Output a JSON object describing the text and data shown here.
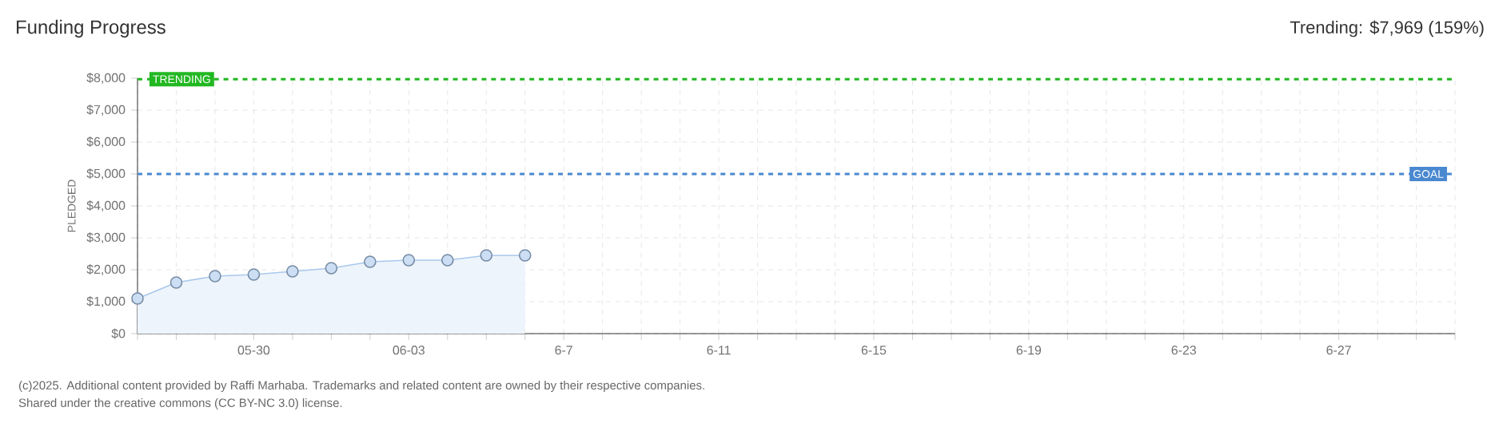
{
  "chart_data": {
    "type": "area",
    "title": "Funding Progress",
    "ylabel": "PLEDGED",
    "annotations": [
      "Trending: $7,969 (159%)",
      "(c)2025. Additional content provided by Raffi Marhaba. Trademarks and related content are owned by their respective companies.",
      "Shared under the creative commons (CC BY-NC 3.0) license."
    ],
    "x": [
      "2025-05-27",
      "2025-05-28",
      "2025-05-29",
      "2025-05-30",
      "2025-05-31",
      "2025-06-01",
      "2025-06-02",
      "2025-06-03",
      "2025-06-04",
      "2025-06-05",
      "2025-06-06"
    ],
    "series": [
      {
        "color": "#a8c8ec",
        "values": [
          1100,
          1600,
          1800,
          1850,
          1950,
          2050,
          2250,
          2300,
          2300,
          2450,
          2450
        ]
      }
    ],
    "marker": "circle",
    "grid": true,
    "xlim": [
      "2025-05-27",
      "2025-06-30"
    ],
    "xticks": [
      {
        "value": "2025-05-27",
        "label": null
      },
      {
        "value": "2025-05-28",
        "label": null
      },
      {
        "value": "2025-05-29",
        "label": null
      },
      {
        "value": "2025-05-30",
        "label": "05-30"
      },
      {
        "value": "2025-05-31",
        "label": null
      },
      {
        "value": "2025-06-01",
        "label": null
      },
      {
        "value": "2025-06-02",
        "label": null
      },
      {
        "value": "2025-06-03",
        "label": "06-03"
      },
      {
        "value": "2025-06-04",
        "label": null
      },
      {
        "value": "2025-06-05",
        "label": null
      },
      {
        "value": "2025-06-06",
        "label": null
      },
      {
        "value": "2025-06-07",
        "label": "6-7"
      },
      {
        "value": "2025-06-08",
        "label": null
      },
      {
        "value": "2025-06-09",
        "label": null
      },
      {
        "value": "2025-06-10",
        "label": null
      },
      {
        "value": "2025-06-11",
        "label": "6-11"
      },
      {
        "value": "2025-06-12",
        "label": null
      },
      {
        "value": "2025-06-13",
        "label": null
      },
      {
        "value": "2025-06-14",
        "label": null
      },
      {
        "value": "2025-06-15",
        "label": "6-15"
      },
      {
        "value": "2025-06-16",
        "label": null
      },
      {
        "value": "2025-06-17",
        "label": null
      },
      {
        "value": "2025-06-18",
        "label": null
      },
      {
        "value": "2025-06-19",
        "label": "6-19"
      },
      {
        "value": "2025-06-20",
        "label": null
      },
      {
        "value": "2025-06-21",
        "label": null
      },
      {
        "value": "2025-06-22",
        "label": null
      },
      {
        "value": "2025-06-23",
        "label": "6-23"
      },
      {
        "value": "2025-06-24",
        "label": null
      },
      {
        "value": "2025-06-25",
        "label": null
      },
      {
        "value": "2025-06-26",
        "label": null
      },
      {
        "value": "2025-06-27",
        "label": "6-27"
      },
      {
        "value": "2025-06-28",
        "label": null
      },
      {
        "value": "2025-06-29",
        "label": null
      },
      {
        "value": "2025-06-30",
        "label": null
      }
    ],
    "ylim": [
      0,
      8000
    ],
    "yticks": [
      {
        "value": 0,
        "label": "$0"
      },
      {
        "value": 1000,
        "label": "$1,000"
      },
      {
        "value": 2000,
        "label": "$2,000"
      },
      {
        "value": 3000,
        "label": "$3,000"
      },
      {
        "value": 4000,
        "label": "$4,000"
      },
      {
        "value": 5000,
        "label": "$5,000"
      },
      {
        "value": 6000,
        "label": "$6,000"
      },
      {
        "value": 7000,
        "label": "$7,000"
      },
      {
        "value": 8000,
        "label": "$8,000"
      }
    ],
    "ref_lines": [
      {
        "axis": "y",
        "value": 7969,
        "label": "TRENDING",
        "color": "#22b822",
        "line_style": "dashed"
      },
      {
        "axis": "y",
        "value": 5000,
        "label": "GOAL",
        "color": "#4a88d0",
        "line_style": "dashed"
      }
    ]
  }
}
